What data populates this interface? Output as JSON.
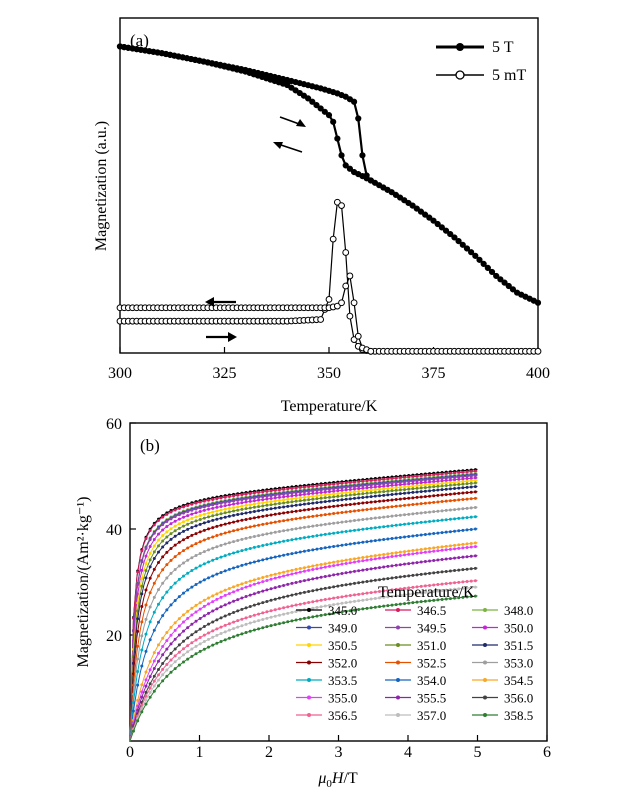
{
  "chart_data": [
    {
      "panel": "(a)",
      "type": "line",
      "xlabel": "Temperature/K",
      "ylabel": "Magnetization (a.u.)",
      "xlim": [
        300,
        400
      ],
      "ylim": [
        0,
        1
      ],
      "x_ticks": [
        "300",
        "325",
        "350",
        "375",
        "400"
      ],
      "legend": {
        "placement": "top-right",
        "entries": [
          "5 T",
          "5 mT"
        ]
      },
      "annotations": [
        "heating arrow (right)",
        "cooling arrow (left)"
      ],
      "series": [
        {
          "name": "5 T",
          "marker": "filled-circle",
          "branches": [
            {
              "direction": "heating",
              "x": [
                300,
                310,
                320,
                330,
                340,
                348,
                352,
                354,
                356,
                357,
                358,
                359,
                360,
                365,
                370,
                375,
                380,
                385,
                390,
                395,
                400
              ],
              "y": [
                0.915,
                0.895,
                0.87,
                0.845,
                0.815,
                0.79,
                0.775,
                0.765,
                0.75,
                0.7,
                0.59,
                0.53,
                0.515,
                0.48,
                0.44,
                0.395,
                0.345,
                0.29,
                0.23,
                0.18,
                0.15
              ]
            },
            {
              "direction": "cooling",
              "x": [
                300,
                310,
                320,
                330,
                340,
                345,
                348,
                350,
                351,
                352,
                353,
                354,
                355,
                356,
                358,
                360
              ],
              "y": [
                0.915,
                0.895,
                0.87,
                0.84,
                0.8,
                0.76,
                0.73,
                0.71,
                0.69,
                0.64,
                0.59,
                0.56,
                0.55,
                0.54,
                0.528,
                0.515
              ]
            }
          ]
        },
        {
          "name": "5 mT",
          "marker": "open-circle",
          "branches": [
            {
              "direction": "heating",
              "x": [
                300,
                320,
                340,
                348,
                350,
                351,
                352,
                353,
                354,
                355,
                356,
                357,
                358,
                360,
                370,
                380,
                390,
                400
              ],
              "y": [
                0.095,
                0.095,
                0.095,
                0.1,
                0.16,
                0.34,
                0.45,
                0.44,
                0.3,
                0.11,
                0.04,
                0.02,
                0.01,
                0.005,
                0.005,
                0.005,
                0.005,
                0.005
              ]
            },
            {
              "direction": "cooling",
              "x": [
                300,
                320,
                340,
                350,
                352,
                353,
                354,
                355,
                356,
                357,
                358,
                360
              ],
              "y": [
                0.135,
                0.135,
                0.135,
                0.135,
                0.14,
                0.15,
                0.2,
                0.23,
                0.15,
                0.05,
                0.015,
                0.005
              ]
            }
          ]
        }
      ]
    },
    {
      "panel": "(b)",
      "type": "line",
      "xlabel": "μ0H/T",
      "ylabel": "Magnetization/(Am²·kg⁻¹)",
      "xlim": [
        0,
        6
      ],
      "ylim": [
        0,
        60
      ],
      "x_ticks": [
        "0",
        "1",
        "2",
        "3",
        "4",
        "5",
        "6"
      ],
      "y_ticks": [
        "20",
        "40",
        "60"
      ],
      "legend": {
        "placement": "bottom-right",
        "title": "Temperature/K"
      },
      "field_x": [
        0,
        0.1,
        0.2,
        0.4,
        0.6,
        0.8,
        1,
        1.5,
        2,
        2.5,
        3,
        3.5,
        4,
        4.5,
        5
      ],
      "series": [
        {
          "name": "345.0",
          "color": "#000000",
          "ms": 46.5,
          "h0": 0.05,
          "k": 1.04
        },
        {
          "name": "346.5",
          "color": "#d81b60",
          "ms": 46.2,
          "h0": 0.05,
          "k": 1.04
        },
        {
          "name": "348.0",
          "color": "#7cb342",
          "ms": 45.9,
          "h0": 0.06,
          "k": 1.03
        },
        {
          "name": "349.0",
          "color": "#3949ab",
          "ms": 45.7,
          "h0": 0.06,
          "k": 1.03
        },
        {
          "name": "349.5",
          "color": "#8e44ad",
          "ms": 45.5,
          "h0": 0.06,
          "k": 1.03
        },
        {
          "name": "350.0",
          "color": "#c026d3",
          "ms": 45.2,
          "h0": 0.07,
          "k": 1.02
        },
        {
          "name": "350.5",
          "color": "#ffd400",
          "ms": 44.8,
          "h0": 0.08,
          "k": 1.02
        },
        {
          "name": "351.0",
          "color": "#6b8e23",
          "ms": 44.4,
          "h0": 0.09,
          "k": 1.02
        },
        {
          "name": "351.5",
          "color": "#1f2a6b",
          "ms": 43.8,
          "h0": 0.1,
          "k": 1.02
        },
        {
          "name": "352.0",
          "color": "#8b0000",
          "ms": 43.0,
          "h0": 0.12,
          "k": 1.01
        },
        {
          "name": "352.5",
          "color": "#e65100",
          "ms": 42.0,
          "h0": 0.15,
          "k": 1.01
        },
        {
          "name": "353.0",
          "color": "#9e9e9e",
          "ms": 40.5,
          "h0": 0.18,
          "k": 1.0
        },
        {
          "name": "353.5",
          "color": "#00acc1",
          "ms": 39.0,
          "h0": 0.22,
          "k": 1.0
        },
        {
          "name": "354.0",
          "color": "#1565c0",
          "ms": 37.0,
          "h0": 0.28,
          "k": 1.0
        },
        {
          "name": "354.5",
          "color": "#f9a825",
          "ms": 35.0,
          "h0": 0.4,
          "k": 1.0
        },
        {
          "name": "355.0",
          "color": "#e040fb",
          "ms": 36.0,
          "h0": 0.5,
          "k": 0.8
        },
        {
          "name": "355.5",
          "color": "#8e24aa",
          "ms": 34.5,
          "h0": 0.55,
          "k": 0.78
        },
        {
          "name": "356.0",
          "color": "#424242",
          "ms": 32.5,
          "h0": 0.6,
          "k": 0.72
        },
        {
          "name": "356.5",
          "color": "#f06292",
          "ms": 30.0,
          "h0": 0.6,
          "k": 0.7
        },
        {
          "name": "357.0",
          "color": "#bdbdbd",
          "ms": 29.0,
          "h0": 0.65,
          "k": 0.68
        },
        {
          "name": "358.5",
          "color": "#2e7d32",
          "ms": 27.5,
          "h0": 0.7,
          "k": 0.65
        }
      ]
    }
  ],
  "legend_a": {
    "items": [
      "5 T",
      "5 mT"
    ]
  },
  "legend_b_title": "Temperature/K"
}
